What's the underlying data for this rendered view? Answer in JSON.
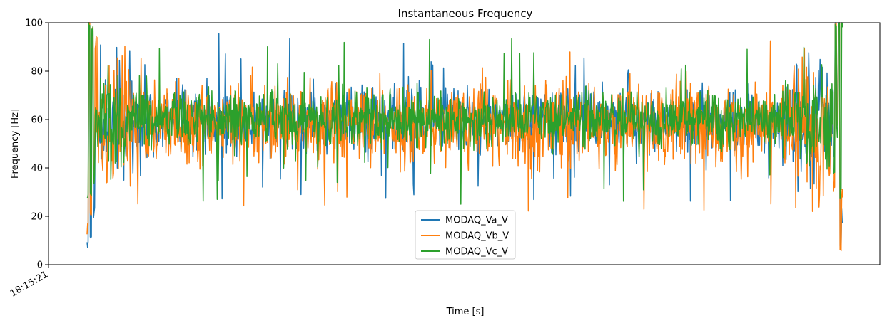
{
  "chart_data": {
    "type": "line",
    "title": "Instantaneous Frequency",
    "xlabel": "Time [s]",
    "ylabel": "Frequency [Hz]",
    "ylim": [
      0,
      100
    ],
    "yticks": [
      0,
      20,
      40,
      60,
      80,
      100
    ],
    "xtick_labels": [
      "18:15:21"
    ],
    "grid": false,
    "legend_position": "lower center",
    "series": [
      {
        "name": "MODAQ_Va_V",
        "color": "#1f77b4",
        "mean": 60,
        "amplitude": 8,
        "spike_min": 7,
        "spike_max": 100,
        "start_values": [
          8,
          100,
          13,
          95,
          22,
          60
        ],
        "end_values": [
          45,
          100,
          62,
          100,
          7,
          20
        ]
      },
      {
        "name": "MODAQ_Vb_V",
        "color": "#ff7f0e",
        "mean": 58,
        "amplitude": 10,
        "spike_min": 5,
        "spike_max": 100,
        "start_values": [
          15,
          100,
          22,
          95,
          40,
          92
        ],
        "end_values": [
          32,
          100,
          60,
          100,
          8,
          30
        ]
      },
      {
        "name": "MODAQ_Vc_V",
        "color": "#2ca02c",
        "mean": 60,
        "amplitude": 7,
        "spike_min": 25,
        "spike_max": 100,
        "start_values": [
          28,
          100,
          30,
          96,
          35,
          62
        ],
        "end_values": [
          40,
          100,
          55,
          100,
          30,
          100
        ]
      }
    ]
  }
}
